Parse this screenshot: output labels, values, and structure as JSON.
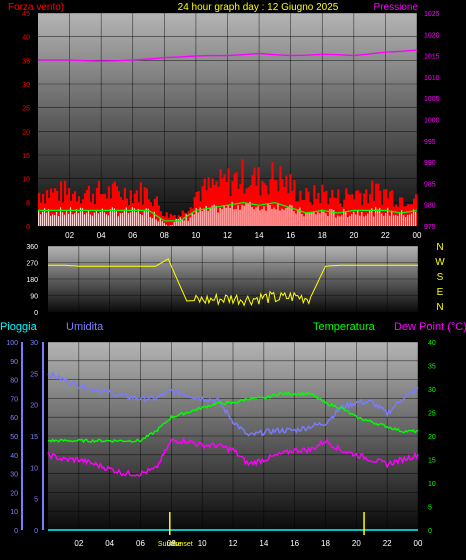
{
  "header": {
    "left_label": "Forza vento)",
    "title": "24 hour graph day : 12 Giugno 2025",
    "right_label": "Pressione"
  },
  "colors": {
    "wind": "#ff0000",
    "gust": "#ff3030",
    "pressure": "#ff00ff",
    "title": "#ffff00",
    "direction": "#ffff00",
    "rain": "#00ffff",
    "humidity": "#7b7bff",
    "temperature": "#00ff00",
    "dewpoint": "#ff00ff",
    "axis_text_left": "#ff0000",
    "axis_text_right": "#ff00ff",
    "rain_label": "#00ffff",
    "humidity_label": "#8080ff",
    "temp_label": "#00ff00",
    "dew_label": "#ff00ff",
    "cardinal": "#ffff00",
    "panel_top": "#b0b0b0",
    "panel_bottom": "#000000"
  },
  "hour_labels": [
    "02",
    "04",
    "06",
    "08",
    "10",
    "12",
    "14",
    "16",
    "18",
    "20",
    "22",
    "00"
  ],
  "chart_data": [
    {
      "type": "area",
      "name": "wind_pressure",
      "x": [
        0,
        1,
        2,
        3,
        4,
        5,
        6,
        7,
        8,
        9,
        10,
        11,
        12,
        13,
        14,
        15,
        16,
        17,
        18,
        19,
        20,
        21,
        22,
        23,
        24
      ],
      "wind_left_ticks": [
        0,
        5,
        10,
        15,
        20,
        25,
        30,
        35,
        40,
        45
      ],
      "pressure_right_ticks": [
        975,
        980,
        985,
        990,
        995,
        1000,
        1005,
        1010,
        1015,
        1020,
        1025
      ],
      "ylim_wind": [
        0,
        45
      ],
      "ylim_pressure": [
        975,
        1025
      ],
      "series": [
        {
          "name": "Forza vento)",
          "values": [
            6,
            6,
            6,
            6,
            6,
            6,
            6,
            6,
            2,
            2,
            6,
            7,
            8,
            9,
            8,
            9,
            7,
            5,
            6,
            5,
            6,
            6,
            6,
            5,
            6
          ]
        },
        {
          "name": "Pressione",
          "values": [
            1014,
            1014,
            1014,
            1013.8,
            1013.7,
            1013.8,
            1014,
            1014.2,
            1014.5,
            1014.7,
            1014.9,
            1015,
            1015,
            1015.2,
            1015.5,
            1015.2,
            1015,
            1015.1,
            1015.3,
            1015.2,
            1015,
            1015.4,
            1015.8,
            1016,
            1016.3
          ]
        }
      ]
    },
    {
      "type": "line",
      "name": "wind_direction",
      "left_ticks": [
        0,
        90,
        180,
        270,
        360
      ],
      "ylim": [
        0,
        360
      ],
      "cardinal_labels": [
        "N",
        "W",
        "S",
        "E",
        "N"
      ],
      "x": [
        0,
        1,
        2,
        3,
        4,
        5,
        6,
        7,
        7.8,
        8,
        9,
        10,
        11,
        12,
        13,
        14,
        15,
        16,
        17,
        18,
        19,
        20,
        21,
        22,
        23,
        24
      ],
      "series": [
        {
          "name": "direction",
          "values": [
            255,
            255,
            250,
            250,
            250,
            250,
            250,
            250,
            290,
            250,
            60,
            65,
            70,
            75,
            70,
            80,
            75,
            85,
            75,
            250,
            255,
            255,
            255,
            255,
            255,
            255
          ]
        }
      ]
    },
    {
      "type": "line",
      "name": "rain_humidity_temp",
      "labels": {
        "rain": "Pioggia",
        "humidity": "Umidita",
        "temperature": "Temperatura",
        "dewpoint": "Dew Point (°C)"
      },
      "rain_ticks": [
        0,
        10,
        20,
        30,
        40,
        50,
        60,
        70,
        80,
        90,
        100
      ],
      "humidity_ticks": [
        0,
        5,
        10,
        15,
        20,
        25,
        30
      ],
      "temp_ticks": [
        0,
        5,
        10,
        15,
        20,
        25,
        30,
        35,
        40
      ],
      "ylim_rain": [
        0,
        100
      ],
      "ylim_humidity": [
        0,
        30
      ],
      "ylim_temp": [
        0,
        40
      ],
      "sun_labels": [
        "Sunrise",
        "Sunset"
      ],
      "x": [
        0,
        1,
        2,
        3,
        4,
        5,
        6,
        7,
        8,
        9,
        10,
        11,
        12,
        13,
        14,
        15,
        16,
        17,
        18,
        19,
        20,
        21,
        22,
        23,
        24
      ],
      "series": [
        {
          "name": "Umidita",
          "values": [
            83,
            80,
            77,
            75,
            73,
            71,
            70,
            70,
            74,
            72,
            70,
            69,
            58,
            50,
            52,
            53,
            53,
            55,
            57,
            65,
            68,
            68,
            62,
            70,
            75
          ]
        },
        {
          "name": "Temperatura",
          "values": [
            19,
            19,
            19,
            19,
            19,
            19,
            19,
            21,
            24,
            25,
            26,
            27,
            27,
            28,
            28,
            29,
            29,
            29,
            27,
            26,
            24,
            23,
            22,
            21,
            21
          ]
        },
        {
          "name": "Dew Point (°C)",
          "values": [
            16,
            15,
            15,
            14,
            13,
            12,
            12,
            13,
            19,
            19,
            18,
            18,
            17,
            14,
            15,
            16,
            17,
            17,
            19,
            17,
            16,
            15,
            14,
            15,
            16
          ]
        },
        {
          "name": "Pioggia",
          "values": [
            0,
            0,
            0,
            0,
            0,
            0,
            0,
            0,
            0,
            0,
            0,
            0,
            0,
            0,
            0,
            0,
            0,
            0,
            0,
            0,
            0,
            0,
            0,
            0,
            0
          ]
        }
      ]
    }
  ]
}
